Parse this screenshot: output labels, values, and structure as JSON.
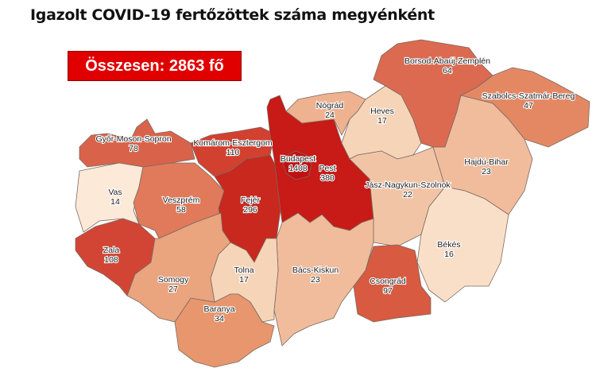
{
  "title": "Igazolt COVID-19 fertőzöttek száma megyénként",
  "total_label": "Összesen: 2863 fő",
  "counties": [
    {
      "name": "Győr-Moson-Sopron",
      "value": "78",
      "color": "#d9634a"
    },
    {
      "name": "Vas",
      "value": "14",
      "color": "#fde9d8"
    },
    {
      "name": "Zala",
      "value": "108",
      "color": "#d24534"
    },
    {
      "name": "Veszprém",
      "value": "58",
      "color": "#e07a5a"
    },
    {
      "name": "Komárom-Esztergom",
      "value": "110",
      "color": "#d2402f"
    },
    {
      "name": "Fejér",
      "value": "296",
      "color": "#c8281e"
    },
    {
      "name": "Pest",
      "value": "380",
      "color": "#c81a16"
    },
    {
      "name": "Budapest",
      "value": "1408",
      "color": "#c01212"
    },
    {
      "name": "Nógrád",
      "value": "24",
      "color": "#eeb290"
    },
    {
      "name": "Heves",
      "value": "17",
      "color": "#f6d4b8"
    },
    {
      "name": "Borsod-Abaúj-Zemplén",
      "value": "64",
      "color": "#db6a50"
    },
    {
      "name": "Szabolcs-Szatmár-Bereg",
      "value": "47",
      "color": "#e48864"
    },
    {
      "name": "Hajdú-Bihar",
      "value": "23",
      "color": "#f0bc9c"
    },
    {
      "name": "Jász-Nagykun-Szolnok",
      "value": "22",
      "color": "#f2c4a6"
    },
    {
      "name": "Békés",
      "value": "16",
      "color": "#fadfc8"
    },
    {
      "name": "Csongrád",
      "value": "97",
      "color": "#d85a40"
    },
    {
      "name": "Bács-Kiskun",
      "value": "23",
      "color": "#f0bc9c"
    },
    {
      "name": "Tolna",
      "value": "17",
      "color": "#f6d4b8"
    },
    {
      "name": "Baranya",
      "value": "34",
      "color": "#e8966e"
    },
    {
      "name": "Somogy",
      "value": "27",
      "color": "#eaa47e"
    }
  ]
}
